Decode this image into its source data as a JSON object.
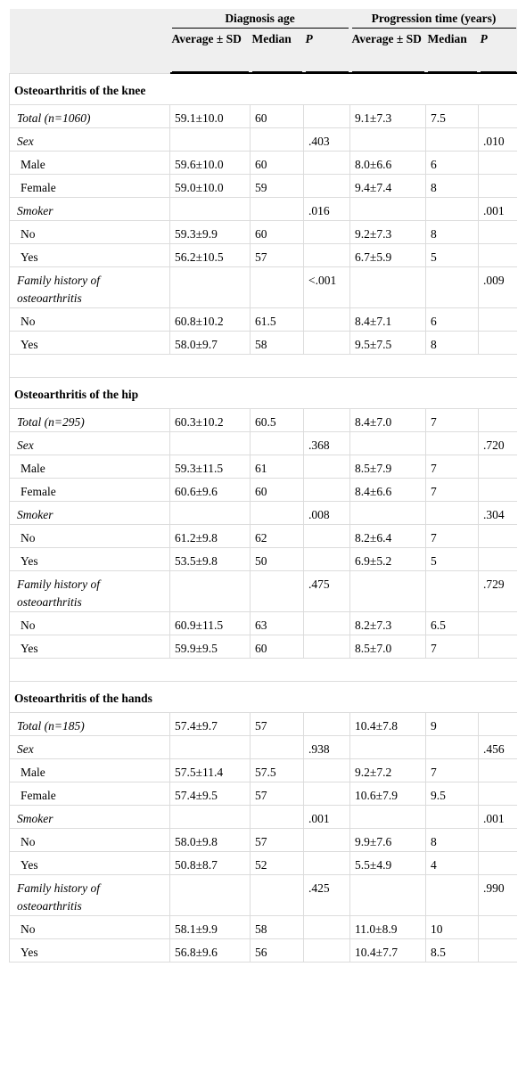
{
  "table": {
    "header": {
      "groups": [
        "Diagnosis age",
        "Progression time (years)"
      ],
      "columns": [
        "Average ± SD",
        "Median",
        "P",
        "Average ± SD",
        "Median",
        "P"
      ]
    },
    "sections": [
      {
        "title": "Osteoarthritis of the knee",
        "rows": [
          [
            "Total (n=1060)",
            "59.1±10.0",
            "60",
            null,
            "9.1±7.3",
            "7.5",
            null
          ],
          [
            "Sex",
            null,
            null,
            ".403",
            null,
            null,
            ".010"
          ],
          [
            "Male",
            "59.6±10.0",
            "60",
            null,
            "8.0±6.6",
            "6",
            null
          ],
          [
            "Female",
            "59.0±10.0",
            "59",
            null,
            "9.4±7.4",
            "8",
            null
          ],
          [
            "Smoker",
            null,
            null,
            ".016",
            null,
            null,
            ".001"
          ],
          [
            "No",
            "59.3±9.9",
            "60",
            null,
            "9.2±7.3",
            "8",
            null
          ],
          [
            "Yes",
            "56.2±10.5",
            "57",
            null,
            "6.7±5.9",
            "5",
            null
          ],
          [
            "Family history of osteoarthritis",
            null,
            null,
            "<.001",
            null,
            null,
            ".009"
          ],
          [
            "No",
            "60.8±10.2",
            "61.5",
            null,
            "8.4±7.1",
            "6",
            null
          ],
          [
            "Yes",
            "58.0±9.7",
            "58",
            null,
            "9.5±7.5",
            "8",
            null
          ]
        ]
      },
      {
        "title": "Osteoarthritis of the hip",
        "rows": [
          [
            "Total (n=295)",
            "60.3±10.2",
            "60.5",
            null,
            "8.4±7.0",
            "7",
            null
          ],
          [
            "Sex",
            null,
            null,
            ".368",
            null,
            null,
            ".720"
          ],
          [
            "Male",
            "59.3±11.5",
            "61",
            null,
            "8.5±7.9",
            "7",
            null
          ],
          [
            "Female",
            "60.6±9.6",
            "60",
            null,
            "8.4±6.6",
            "7",
            null
          ],
          [
            "Smoker",
            null,
            null,
            ".008",
            null,
            null,
            ".304"
          ],
          [
            "No",
            "61.2±9.8",
            "62",
            null,
            "8.2±6.4",
            "7",
            null
          ],
          [
            "Yes",
            "53.5±9.8",
            "50",
            null,
            "6.9±5.2",
            "5",
            null
          ],
          [
            "Family history of osteoarthritis",
            null,
            null,
            ".475",
            null,
            null,
            ".729"
          ],
          [
            "No",
            "60.9±11.5",
            "63",
            null,
            "8.2±7.3",
            "6.5",
            null
          ],
          [
            "Yes",
            "59.9±9.5",
            "60",
            null,
            "8.5±7.0",
            "7",
            null
          ]
        ]
      },
      {
        "title": "Osteoarthritis of the hands",
        "rows": [
          [
            "Total (n=185)",
            "57.4±9.7",
            "57",
            null,
            "10.4±7.8",
            "9",
            null
          ],
          [
            "Sex",
            null,
            null,
            ".938",
            null,
            null,
            ".456"
          ],
          [
            "Male",
            "57.5±11.4",
            "57.5",
            null,
            "9.2±7.2",
            "7",
            null
          ],
          [
            "Female",
            "57.4±9.5",
            "57",
            null,
            "10.6±7.9",
            "9.5",
            null
          ],
          [
            "Smoker",
            null,
            null,
            ".001",
            null,
            null,
            ".001"
          ],
          [
            "No",
            "58.0±9.8",
            "57",
            null,
            "9.9±7.6",
            "8",
            null
          ],
          [
            "Yes",
            "50.8±8.7",
            "52",
            null,
            "5.5±4.9",
            "4",
            null
          ],
          [
            "Family history of osteoarthritis",
            null,
            null,
            ".425",
            null,
            null,
            ".990"
          ],
          [
            "No",
            "58.1±9.9",
            "58",
            null,
            "11.0±8.9",
            "10",
            null
          ],
          [
            "Yes",
            "56.8±9.6",
            "56",
            null,
            "10.4±7.7",
            "8.5",
            null
          ]
        ]
      }
    ]
  }
}
